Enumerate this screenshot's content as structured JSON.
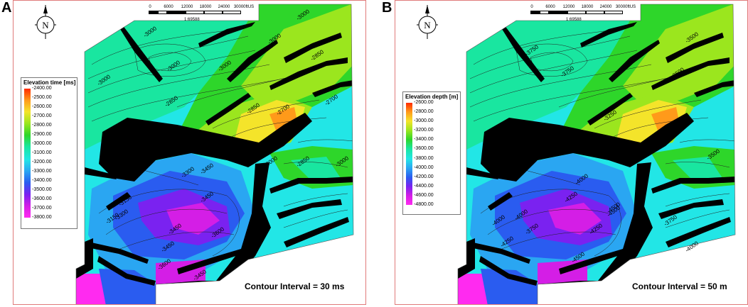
{
  "panels": [
    {
      "letter": "A",
      "scale": {
        "ticks": [
          "0",
          "6000",
          "12000",
          "18000",
          "24000",
          "30000ftUS"
        ],
        "ratio": "1:69588"
      },
      "legend": {
        "title": "Elevation time [ms]",
        "ticks": [
          "-2400.00",
          "-2500.00",
          "-2600.00",
          "-2700.00",
          "-2800.00",
          "-2900.00",
          "-3000.00",
          "-3100.00",
          "-3200.00",
          "-3300.00",
          "-3400.00",
          "-3500.00",
          "-3600.00",
          "-3700.00",
          "-3800.00"
        ]
      },
      "contour_labels": [
        "-3000",
        "-3000",
        "-3000",
        "-3000",
        "-3000",
        "-2850",
        "-3000",
        "-2850",
        "-2700",
        "-2700",
        "-2850",
        "-3000",
        "-2850",
        "-3000",
        "-3300",
        "-3450",
        "-3150",
        "-3300",
        "-3450",
        "-3450",
        "-3150",
        "-3450",
        "-3600",
        "-3600",
        "-3450"
      ],
      "note": "Contour Interval = 30 ms"
    },
    {
      "letter": "B",
      "scale": {
        "ticks": [
          "0",
          "6000",
          "12000",
          "18000",
          "24000",
          "30000ftUS"
        ],
        "ratio": "1:69588"
      },
      "legend": {
        "title": "Elevation depth [m]",
        "ticks": [
          "-2600.00",
          "-2800.00",
          "-3000.00",
          "-3200.00",
          "-3400.00",
          "-3600.00",
          "-3800.00",
          "-4000.00",
          "-4200.00",
          "-4400.00",
          "-4600.00",
          "-4800.00"
        ]
      },
      "contour_labels": [
        "-3750",
        "-3750",
        "-3500",
        "-3500",
        "-3250",
        "-3500",
        "-4000",
        "-4250",
        "-4000",
        "-4250",
        "-3750",
        "-4000",
        "-4500",
        "-4250",
        "-4500",
        "-4500",
        "-3750",
        "-4000"
      ],
      "note": "Contour Interval = 50 m"
    }
  ],
  "colors": {
    "frame": "#e07a7a",
    "fault": "#000000",
    "ramp": [
      "#ff2a00",
      "#ff9a1a",
      "#f4e42a",
      "#9be61e",
      "#2ed62a",
      "#19e6a0",
      "#22e6e6",
      "#2aa6f2",
      "#2a5cf0",
      "#7a22f0",
      "#d41ee6",
      "#ff2af0"
    ]
  },
  "icons": {
    "north_arrow": "north-arrow-icon"
  }
}
